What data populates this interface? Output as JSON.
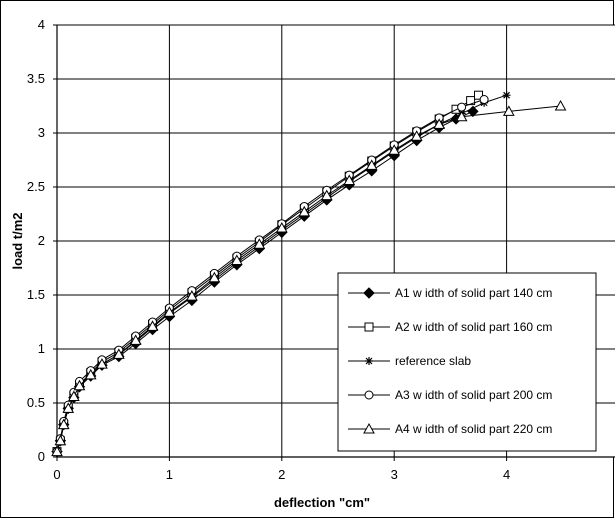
{
  "chart_data": {
    "type": "line",
    "xlabel": "deflection \"cm\"",
    "ylabel": "load t/m2",
    "xlim": [
      0,
      5
    ],
    "ylim": [
      0,
      4
    ],
    "xticks": [
      0,
      1,
      2,
      3,
      4,
      5
    ],
    "yticks": [
      0,
      0.5,
      1,
      1.5,
      2,
      2.5,
      3,
      3.5,
      4
    ],
    "ytick_labels": [
      "0",
      "0.5",
      "1",
      "1.5",
      "2",
      "2.5",
      "3",
      "3.5",
      "4"
    ],
    "grid": true,
    "legend_position": "bottom-right",
    "series": [
      {
        "name": "A1 w idth of solid part 140 cm",
        "marker": "diamond-filled",
        "x": [
          0,
          0.03,
          0.06,
          0.1,
          0.15,
          0.2,
          0.3,
          0.4,
          0.55,
          0.7,
          0.85,
          1.0,
          1.2,
          1.4,
          1.6,
          1.8,
          2.0,
          2.2,
          2.4,
          2.6,
          2.8,
          3.0,
          3.2,
          3.4,
          3.55,
          3.7
        ],
        "y": [
          0.05,
          0.15,
          0.3,
          0.45,
          0.55,
          0.65,
          0.75,
          0.85,
          0.93,
          1.05,
          1.18,
          1.3,
          1.45,
          1.62,
          1.78,
          1.93,
          2.08,
          2.23,
          2.38,
          2.52,
          2.65,
          2.79,
          2.93,
          3.05,
          3.13,
          3.2
        ]
      },
      {
        "name": "A2 w idth of solid part 160 cm",
        "marker": "square-open",
        "x": [
          0,
          0.03,
          0.06,
          0.1,
          0.15,
          0.2,
          0.3,
          0.4,
          0.55,
          0.7,
          0.85,
          1.0,
          1.2,
          1.4,
          1.6,
          1.8,
          2.0,
          2.2,
          2.4,
          2.6,
          2.8,
          3.0,
          3.2,
          3.4,
          3.55,
          3.68,
          3.75
        ],
        "y": [
          0.05,
          0.15,
          0.3,
          0.45,
          0.57,
          0.67,
          0.78,
          0.88,
          0.97,
          1.1,
          1.23,
          1.36,
          1.52,
          1.68,
          1.84,
          1.99,
          2.15,
          2.3,
          2.45,
          2.6,
          2.74,
          2.88,
          3.01,
          3.13,
          3.22,
          3.3,
          3.35
        ]
      },
      {
        "name": "reference slab",
        "marker": "asterisk",
        "x": [
          0,
          0.03,
          0.06,
          0.1,
          0.15,
          0.2,
          0.3,
          0.4,
          0.55,
          0.7,
          0.85,
          1.0,
          1.2,
          1.4,
          1.6,
          1.8,
          2.0,
          2.2,
          2.4,
          2.6,
          2.8,
          3.0,
          3.2,
          3.4,
          3.6,
          3.8,
          4.0
        ],
        "y": [
          0.05,
          0.15,
          0.3,
          0.45,
          0.56,
          0.66,
          0.77,
          0.86,
          0.95,
          1.07,
          1.2,
          1.33,
          1.48,
          1.64,
          1.8,
          1.95,
          2.1,
          2.25,
          2.4,
          2.55,
          2.69,
          2.83,
          2.96,
          3.08,
          3.18,
          3.28,
          3.35
        ]
      },
      {
        "name": "A3 w idth of solid part 200 cm",
        "marker": "circle-open",
        "x": [
          0,
          0.03,
          0.06,
          0.1,
          0.15,
          0.2,
          0.3,
          0.4,
          0.55,
          0.7,
          0.85,
          1.0,
          1.2,
          1.4,
          1.6,
          1.8,
          2.0,
          2.2,
          2.4,
          2.6,
          2.8,
          3.0,
          3.2,
          3.4,
          3.6,
          3.8
        ],
        "y": [
          0.05,
          0.17,
          0.33,
          0.48,
          0.6,
          0.7,
          0.8,
          0.9,
          0.99,
          1.12,
          1.25,
          1.38,
          1.54,
          1.7,
          1.86,
          2.01,
          2.16,
          2.32,
          2.47,
          2.61,
          2.75,
          2.89,
          3.02,
          3.14,
          3.24,
          3.31
        ]
      },
      {
        "name": "A4 w idth of solid part 220 cm",
        "marker": "triangle-open",
        "x": [
          0,
          0.03,
          0.06,
          0.1,
          0.15,
          0.2,
          0.3,
          0.4,
          0.55,
          0.7,
          0.85,
          1.0,
          1.2,
          1.4,
          1.6,
          1.8,
          2.0,
          2.2,
          2.4,
          2.6,
          2.8,
          3.0,
          3.2,
          3.4,
          3.6,
          4.02,
          4.48
        ],
        "y": [
          0.05,
          0.15,
          0.3,
          0.45,
          0.56,
          0.66,
          0.76,
          0.86,
          0.95,
          1.08,
          1.21,
          1.34,
          1.49,
          1.66,
          1.82,
          1.97,
          2.12,
          2.27,
          2.42,
          2.56,
          2.7,
          2.84,
          2.97,
          3.08,
          3.15,
          3.2,
          3.25
        ]
      }
    ]
  }
}
